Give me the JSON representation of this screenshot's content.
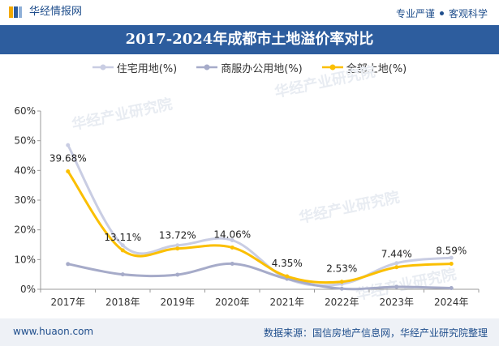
{
  "header": {
    "brand": "华经情报网",
    "slogan_left": "专业严谨",
    "slogan_right": "客观科学"
  },
  "footer": {
    "site": "www.huaon.com",
    "source": "数据来源：国信房地产信息网，华经产业研究院整理"
  },
  "watermark": "华经产业研究院",
  "colors": {
    "title_bar": "#2d5d9e",
    "series_residential": "#c9cde3",
    "series_commercial": "#a6abc9",
    "series_all": "#fbbf00",
    "brand_text": "#1f4e8c"
  },
  "chart_data": {
    "type": "line",
    "title": "2017-2024年成都市土地溢价率对比",
    "categories": [
      "2017年",
      "2018年",
      "2019年",
      "2020年",
      "2021年",
      "2022年",
      "2023年",
      "2024年"
    ],
    "y_tick_labels": [
      "0%",
      "10%",
      "20%",
      "30%",
      "40%",
      "50%",
      "60%"
    ],
    "ylim": [
      0,
      60
    ],
    "smooth": true,
    "grid": false,
    "legend_position": "top",
    "series": [
      {
        "name": "住宅用地(%)",
        "values": [
          48.5,
          14.8,
          14.8,
          16.5,
          3.6,
          1.8,
          8.8,
          10.6
        ],
        "show_labels": false
      },
      {
        "name": "商服办公用地(%)",
        "values": [
          8.5,
          5.0,
          4.9,
          8.6,
          3.5,
          0.2,
          0.8,
          0.4
        ],
        "show_labels": false
      },
      {
        "name": "全部土地(%)",
        "values": [
          39.68,
          13.11,
          13.72,
          14.06,
          4.35,
          2.53,
          7.44,
          8.59
        ],
        "show_labels": true,
        "labels": [
          "39.68%",
          "13.11%",
          "13.72%",
          "14.06%",
          "4.35%",
          "2.53%",
          "7.44%",
          "8.59%"
        ]
      }
    ]
  }
}
